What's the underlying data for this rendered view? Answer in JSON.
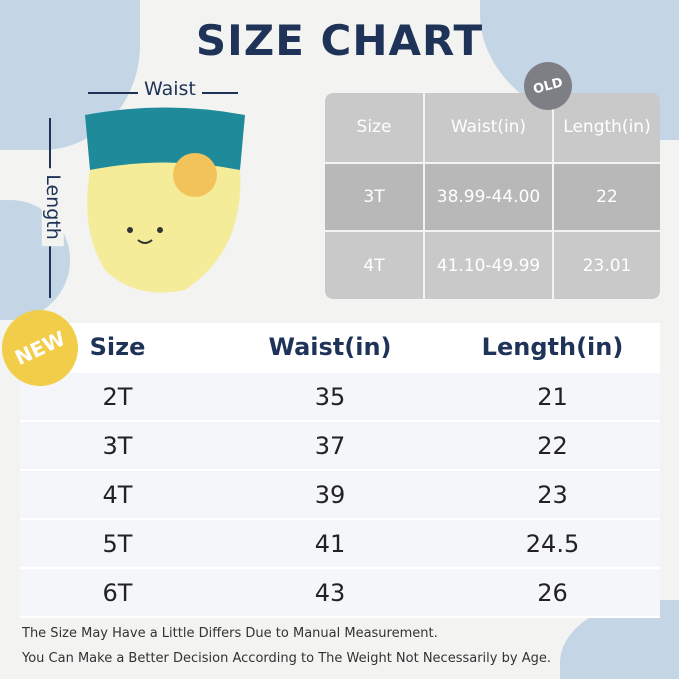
{
  "title": "SIZE CHART",
  "diagram": {
    "waist_label": "Waist",
    "length_label": "Length"
  },
  "old_table": {
    "badge": "OLD",
    "headers": [
      "Size",
      "Waist(in)",
      "Length(in)"
    ],
    "rows": [
      [
        "3T",
        "38.99-44.00",
        "22"
      ],
      [
        "4T",
        "41.10-49.99",
        "23.01"
      ]
    ]
  },
  "new_table": {
    "badge": "NEW",
    "headers": [
      "Size",
      "Waist(in)",
      "Length(in)"
    ],
    "rows": [
      [
        "2T",
        "35",
        "21"
      ],
      [
        "3T",
        "37",
        "22"
      ],
      [
        "4T",
        "39",
        "23"
      ],
      [
        "5T",
        "41",
        "24.5"
      ],
      [
        "6T",
        "43",
        "26"
      ]
    ]
  },
  "notes": [
    "The Size May Have a Little Differs Due to Manual Measurement.",
    "You Can Make a Better Decision According to The Weight Not Necessarily by Age."
  ],
  "colors": {
    "title": "#1e3357",
    "blob": "#c4d5e6",
    "new_badge": "#f1cd4a",
    "old_badge": "#7d7f84",
    "underwear_band": "#1f8a9a",
    "underwear_body": "#f5ec9a"
  }
}
